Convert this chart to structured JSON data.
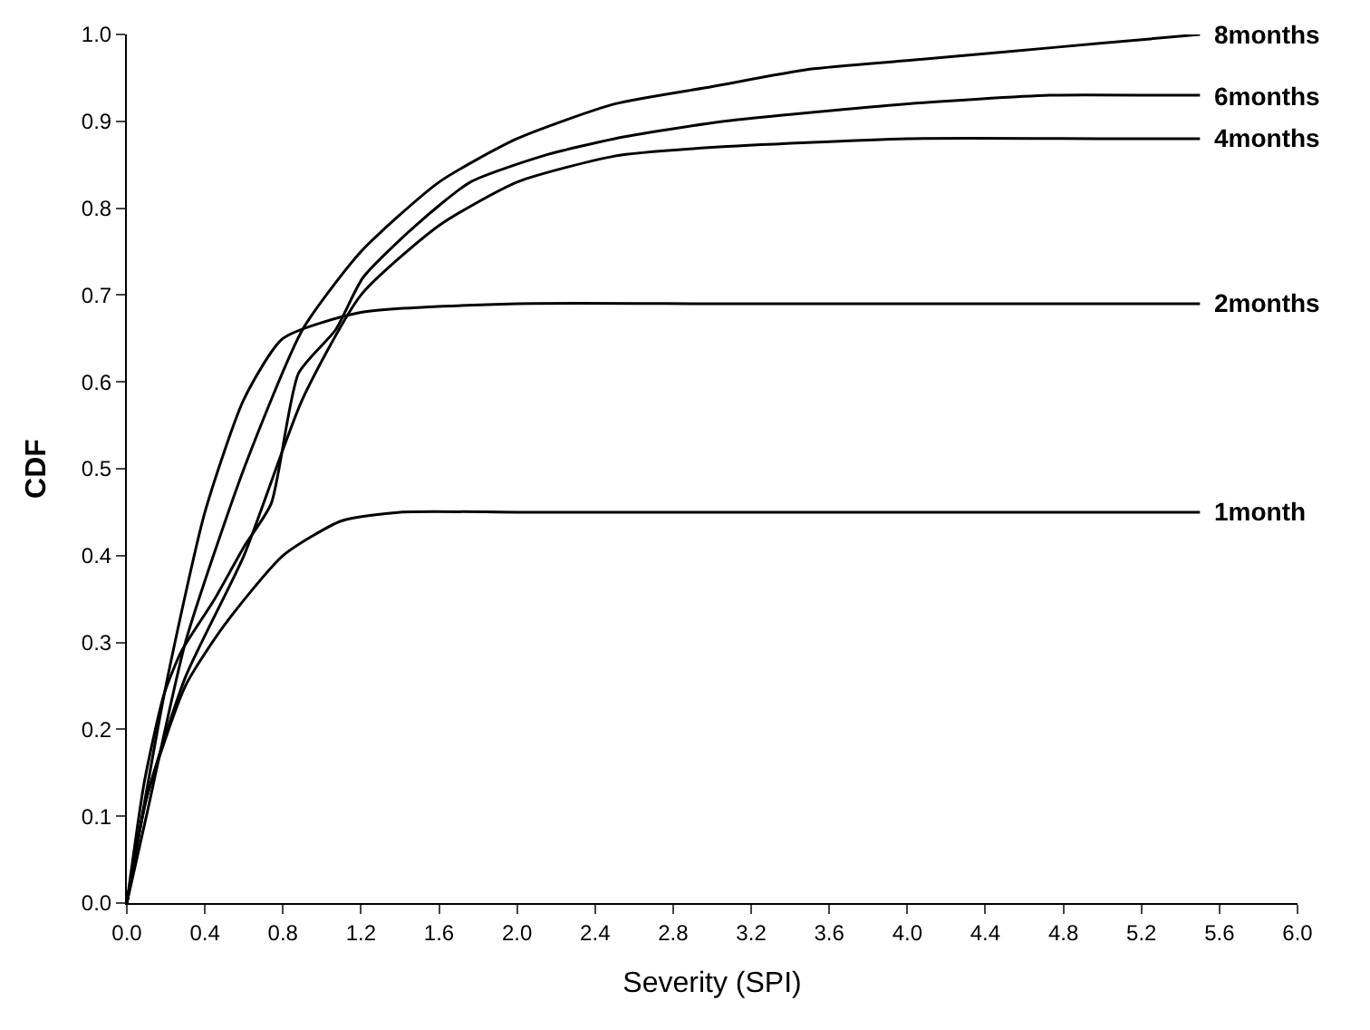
{
  "chart_data": {
    "type": "line",
    "xlabel": "Severity (SPI)",
    "ylabel": "CDF",
    "xlim": [
      0,
      6.0
    ],
    "ylim": [
      0,
      1.0
    ],
    "xticks": [
      {
        "value": 0,
        "label": "0.0"
      },
      0.4,
      0.8,
      1.2,
      1.6,
      {
        "value": 2,
        "label": "2.0"
      },
      2.4,
      2.8,
      3.2,
      3.6,
      {
        "value": 4,
        "label": "4.0"
      },
      4.4,
      4.8,
      5.2,
      5.6,
      {
        "value": 6,
        "label": "6.0"
      }
    ],
    "yticks": [
      {
        "value": 0,
        "label": "0.0"
      },
      0.1,
      0.2,
      0.3,
      0.4,
      0.5,
      0.6,
      0.7,
      0.8,
      0.9,
      {
        "value": 1,
        "label": "1.0"
      }
    ],
    "legend": false,
    "grid": false,
    "marker": "none",
    "line_style": "solid",
    "series": [
      {
        "name": "8months",
        "color": "#000000",
        "x": [
          0,
          0.1,
          0.3,
          0.6,
          0.9,
          1.2,
          1.6,
          2.0,
          2.5,
          3.0,
          3.5,
          4.0,
          4.5,
          5.0,
          5.5
        ],
        "values": [
          0,
          0.1,
          0.3,
          0.5,
          0.66,
          0.75,
          0.83,
          0.88,
          0.92,
          0.94,
          0.96,
          0.97,
          0.98,
          0.99,
          1.0
        ]
      },
      {
        "name": "6months",
        "color": "#000000",
        "x": [
          0,
          0.09,
          0.19,
          0.28,
          0.45,
          0.6,
          0.74,
          0.88,
          1.07,
          1.21,
          1.48,
          1.76,
          2.13,
          2.5,
          3.06,
          3.99,
          4.73,
          5.29,
          5.5
        ],
        "values": [
          0,
          0.14,
          0.24,
          0.29,
          0.35,
          0.41,
          0.46,
          0.61,
          0.66,
          0.72,
          0.78,
          0.83,
          0.86,
          0.88,
          0.9,
          0.92,
          0.93,
          0.93,
          0.93
        ]
      },
      {
        "name": "4months",
        "color": "#000000",
        "x": [
          0,
          0.1,
          0.3,
          0.6,
          0.9,
          1.2,
          1.6,
          2.0,
          2.5,
          3.0,
          4.0,
          5.0,
          5.5
        ],
        "values": [
          0,
          0.12,
          0.26,
          0.4,
          0.58,
          0.7,
          0.78,
          0.83,
          0.86,
          0.87,
          0.88,
          0.88,
          0.88
        ]
      },
      {
        "name": "2months",
        "color": "#000000",
        "x": [
          0,
          0.2,
          0.4,
          0.6,
          0.8,
          1.2,
          2.0,
          3.0,
          4.0,
          5.5
        ],
        "values": [
          0,
          0.25,
          0.45,
          0.58,
          0.65,
          0.68,
          0.69,
          0.69,
          0.69,
          0.69
        ]
      },
      {
        "name": "1month",
        "color": "#000000",
        "x": [
          0,
          0.1,
          0.3,
          0.5,
          0.8,
          1.1,
          1.4,
          2.0,
          3.0,
          4.0,
          5.5
        ],
        "values": [
          0,
          0.12,
          0.25,
          0.32,
          0.4,
          0.44,
          0.45,
          0.45,
          0.45,
          0.45,
          0.45
        ]
      }
    ]
  }
}
